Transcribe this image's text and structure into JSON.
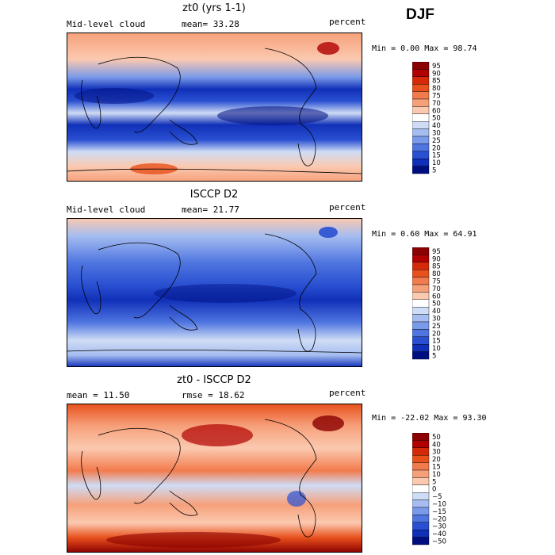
{
  "season": "DJF",
  "chart_data": [
    {
      "type": "heatmap",
      "title": "zt0 (yrs 1-1)",
      "variable": "Mid-level cloud",
      "mean_label": "mean=",
      "mean_value": "33.28",
      "units": "percent",
      "min_label": "Min =",
      "min_value": "0.00",
      "max_label": "Max =",
      "max_value": "98.74",
      "colorbar_levels": [
        "95",
        "90",
        "85",
        "80",
        "75",
        "70",
        "60",
        "50",
        "40",
        "30",
        "25",
        "20",
        "15",
        "10",
        "5"
      ],
      "colorbar_colors": [
        "#8b0000",
        "#b00000",
        "#d42a0a",
        "#e8501c",
        "#f27b4d",
        "#f6a07a",
        "#fbc9b0",
        "#ffffff",
        "#cfdcf5",
        "#a5bdf0",
        "#7a9aea",
        "#4f75e0",
        "#2a50d2",
        "#1030b8",
        "#000f80"
      ]
    },
    {
      "type": "heatmap",
      "title": "ISCCP D2",
      "variable": "Mid-level cloud",
      "mean_label": "mean=",
      "mean_value": "21.77",
      "units": "percent",
      "min_label": "Min =",
      "min_value": "0.60",
      "max_label": "Max =",
      "max_value": "64.91",
      "colorbar_levels": [
        "95",
        "90",
        "85",
        "80",
        "75",
        "70",
        "60",
        "50",
        "40",
        "30",
        "25",
        "20",
        "15",
        "10",
        "5"
      ],
      "colorbar_colors": [
        "#8b0000",
        "#b00000",
        "#d42a0a",
        "#e8501c",
        "#f27b4d",
        "#f6a07a",
        "#fbc9b0",
        "#ffffff",
        "#cfdcf5",
        "#a5bdf0",
        "#7a9aea",
        "#4f75e0",
        "#2a50d2",
        "#1030b8",
        "#000f80"
      ]
    },
    {
      "type": "heatmap",
      "title": "zt0 - ISCCP D2",
      "mean_label": "mean =",
      "mean_value": "11.50",
      "rmse_label": "rmse =",
      "rmse_value": "18.62",
      "units": "percent",
      "min_label": "Min =",
      "min_value": "-22.02",
      "max_label": "Max =",
      "max_value": "93.30",
      "colorbar_levels": [
        "50",
        "40",
        "30",
        "20",
        "15",
        "10",
        "5",
        "0",
        "−5",
        "−10",
        "−15",
        "−20",
        "−30",
        "−40",
        "−50"
      ],
      "colorbar_colors": [
        "#8b0000",
        "#b00000",
        "#d42a0a",
        "#e8501c",
        "#f27b4d",
        "#f6a07a",
        "#fbc9b0",
        "#ffffff",
        "#cfdcf5",
        "#a5bdf0",
        "#7a9aea",
        "#4f75e0",
        "#2a50d2",
        "#1030b8",
        "#000f80"
      ]
    }
  ]
}
